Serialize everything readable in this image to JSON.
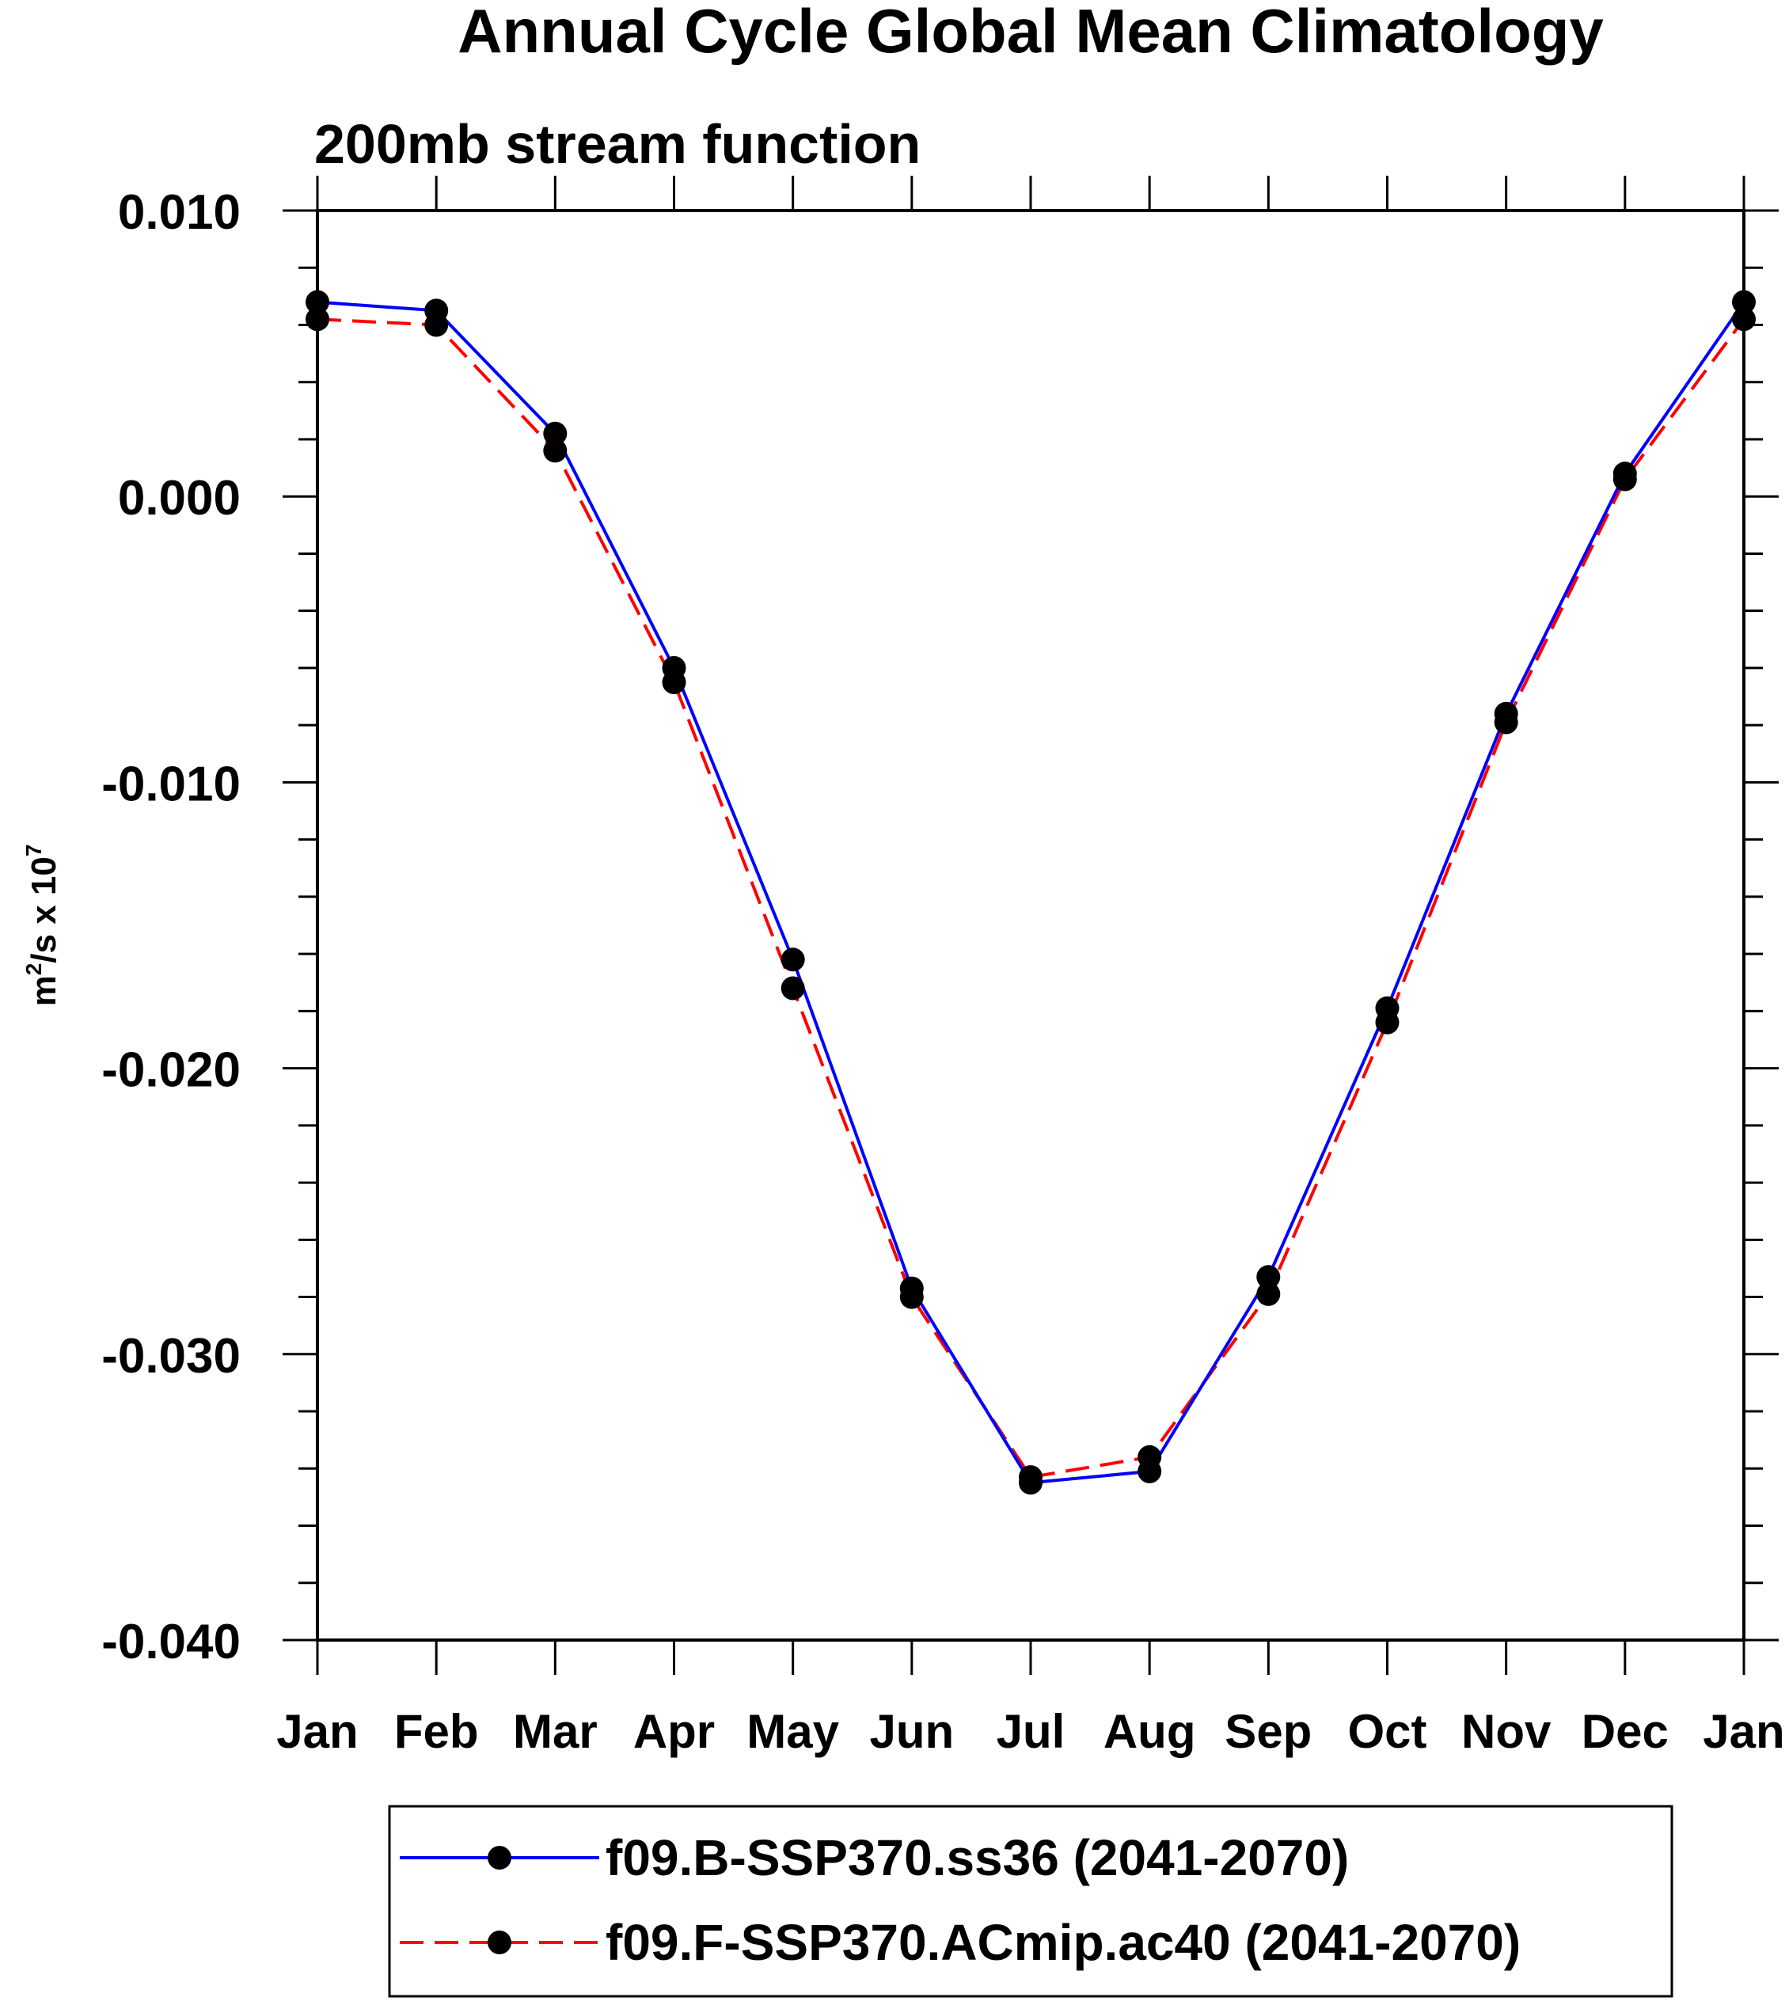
{
  "chart_data": {
    "type": "line",
    "title": "Annual Cycle Global Mean Climatology",
    "subtitle": "200mb stream function",
    "ylabel": {
      "base": "m",
      "sup1": "2",
      "mid": "/s x 10",
      "sup2": "7"
    },
    "xlabel": "",
    "categories": [
      "Jan",
      "Feb",
      "Mar",
      "Apr",
      "May",
      "Jun",
      "Jul",
      "Aug",
      "Sep",
      "Oct",
      "Nov",
      "Dec",
      "Jan"
    ],
    "ylim": [
      -0.04,
      0.01
    ],
    "yticks": [
      0.01,
      0.0,
      -0.01,
      -0.02,
      -0.03,
      -0.04
    ],
    "ytick_labels": [
      "0.010",
      "0.000",
      "-0.010",
      "-0.020",
      "-0.030",
      "-0.040"
    ],
    "grid": false,
    "legend_position": "bottom",
    "series": [
      {
        "name": "f09.B-SSP370.ss36 (2041-2070)",
        "color": "#0000ff",
        "dash": "solid",
        "marker": "filled-circle",
        "values": [
          0.0068,
          0.0065,
          0.0022,
          -0.006,
          -0.0162,
          -0.0277,
          -0.0345,
          -0.0341,
          -0.0273,
          -0.0179,
          -0.0076,
          0.0008,
          0.0068
        ]
      },
      {
        "name": "f09.F-SSP370.ACmip.ac40 (2041-2070)",
        "color": "#ff0000",
        "dash": "dashed",
        "marker": "filled-circle",
        "values": [
          0.0062,
          0.006,
          0.0016,
          -0.0065,
          -0.0172,
          -0.028,
          -0.0343,
          -0.0336,
          -0.0279,
          -0.0184,
          -0.0079,
          0.0006,
          0.0062
        ]
      }
    ]
  }
}
